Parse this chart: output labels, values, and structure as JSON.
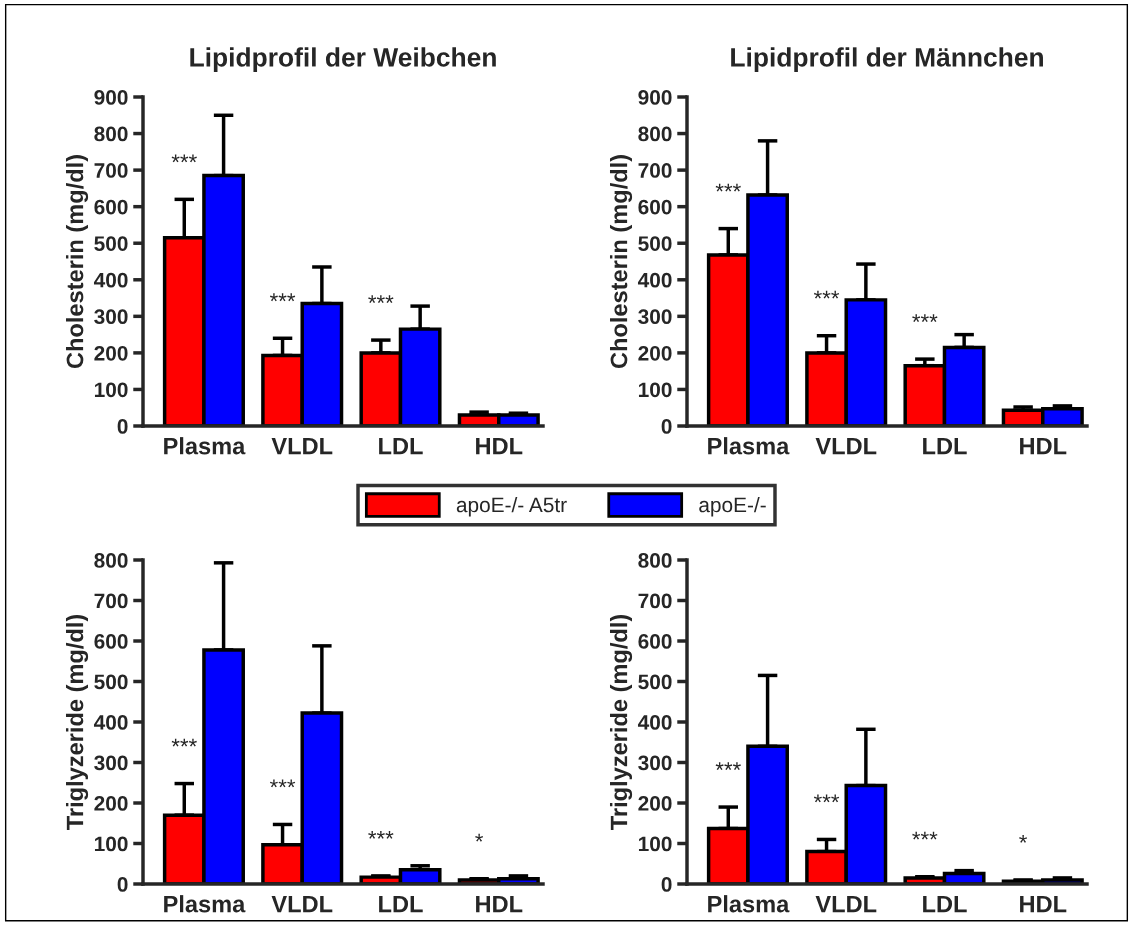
{
  "chart_data": [
    {
      "type": "bar",
      "title": "Lipidprofil der Weibchen",
      "ylabel": "Cholesterin (mg/dl)",
      "categories": [
        "Plasma",
        "VLDL",
        "LDL",
        "HDL"
      ],
      "ylim": [
        0,
        900
      ],
      "yticks": [
        0,
        100,
        200,
        300,
        400,
        500,
        600,
        700,
        800,
        900
      ],
      "legend": "bottom",
      "series": [
        {
          "name": "apoE-/- A5tr",
          "color": "#ff0000",
          "values": [
            515,
            193,
            200,
            30
          ],
          "errors": [
            [
              515,
              620
            ],
            [
              193,
              240
            ],
            [
              200,
              235
            ],
            [
              30,
              38
            ]
          ]
        },
        {
          "name": "apoE-/-",
          "color": "#0000ff",
          "values": [
            685,
            335,
            265,
            30
          ],
          "errors": [
            [
              685,
              850
            ],
            [
              335,
              435
            ],
            [
              265,
              328
            ],
            [
              30,
              35
            ]
          ]
        }
      ],
      "annotations": [
        "***",
        "***",
        "***"
      ]
    },
    {
      "type": "bar",
      "title": "Lipidprofil der Männchen",
      "ylabel": "Cholesterin (mg/dl)",
      "categories": [
        "Plasma",
        "VLDL",
        "LDL",
        "HDL"
      ],
      "ylim": [
        0,
        900
      ],
      "yticks": [
        0,
        100,
        200,
        300,
        400,
        500,
        600,
        700,
        800,
        900
      ],
      "series": [
        {
          "color": "#ff0000",
          "values": [
            468,
            200,
            165,
            43
          ],
          "errors": [
            [
              468,
              540
            ],
            [
              200,
              247
            ],
            [
              165,
              183
            ],
            [
              43,
              52
            ]
          ]
        },
        {
          "color": "#0000ff",
          "values": [
            632,
            345,
            215,
            47
          ],
          "errors": [
            [
              632,
              780
            ],
            [
              345,
              443
            ],
            [
              215,
              250
            ],
            [
              47,
              55
            ]
          ]
        }
      ],
      "annotations": [
        "***",
        "***",
        "***"
      ]
    },
    {
      "type": "bar",
      "ylabel": "Triglyzeride (mg/dl)",
      "categories": [
        "Plasma",
        "VLDL",
        "LDL",
        "HDL"
      ],
      "ylim": [
        0,
        800
      ],
      "yticks": [
        0,
        100,
        200,
        300,
        400,
        500,
        600,
        700,
        800
      ],
      "series": [
        {
          "color": "#ff0000",
          "values": [
            170,
            97,
            17,
            10
          ],
          "errors": [
            [
              170,
              248
            ],
            [
              97,
              147
            ],
            [
              17,
              20
            ],
            [
              10,
              13
            ]
          ]
        },
        {
          "color": "#0000ff",
          "values": [
            578,
            422,
            35,
            13
          ],
          "errors": [
            [
              578,
              793
            ],
            [
              422,
              588
            ],
            [
              35,
              45
            ],
            [
              13,
              20
            ]
          ]
        }
      ],
      "annotations": [
        "***",
        "***",
        "***",
        "*"
      ]
    },
    {
      "type": "bar",
      "ylabel": "Triglyzeride (mg/dl)",
      "categories": [
        "Plasma",
        "VLDL",
        "LDL",
        "HDL"
      ],
      "ylim": [
        0,
        800
      ],
      "yticks": [
        0,
        100,
        200,
        300,
        400,
        500,
        600,
        700,
        800
      ],
      "series": [
        {
          "color": "#ff0000",
          "values": [
            137,
            80,
            15,
            7
          ],
          "errors": [
            [
              137,
              190
            ],
            [
              80,
              110
            ],
            [
              15,
              18
            ],
            [
              7,
              10
            ]
          ]
        },
        {
          "color": "#0000ff",
          "values": [
            340,
            243,
            26,
            10
          ],
          "errors": [
            [
              340,
              515
            ],
            [
              243,
              382
            ],
            [
              26,
              33
            ],
            [
              10,
              15
            ]
          ]
        }
      ],
      "annotations": [
        "***",
        "***",
        "***",
        "*"
      ]
    }
  ]
}
